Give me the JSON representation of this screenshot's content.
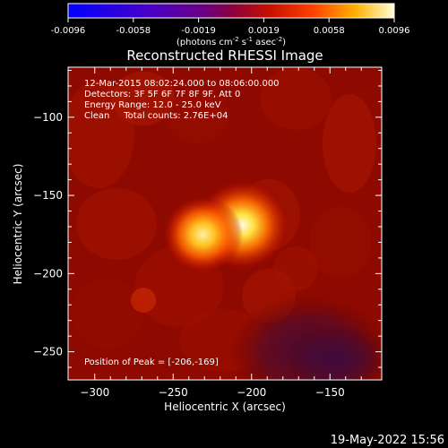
{
  "chart_data": {
    "type": "heatmap",
    "title": "Reconstructed RHESSI Image",
    "xlabel": "Heliocentric X (arcsec)",
    "ylabel": "Heliocentric Y (arcsec)",
    "xlim": [
      -317,
      -117
    ],
    "ylim": [
      -268,
      -68
    ],
    "x_ticks": [
      -300,
      -250,
      -200,
      -150
    ],
    "y_ticks": [
      -100,
      -150,
      -200,
      -250
    ],
    "colorbar": {
      "min": -0.0096,
      "max": 0.0096,
      "ticks": [
        "-0.0096",
        "-0.0058",
        "-0.0019",
        "0.0019",
        "0.0058",
        "0.0096"
      ],
      "unit_label_parts": [
        "(photons cm",
        "-2",
        " s",
        "-1",
        " asec",
        "-2",
        ")"
      ]
    },
    "annotations": [
      "12-Mar-2015 08:02:24.000 to 08:06:00.000",
      "Detectors: 3F 5F 6F 7F 8F 9F, Att 0",
      "Energy Range: 12.0 - 25.0 keV",
      "Clean     Total counts: 2.76E+04"
    ],
    "peak_label": "Position of Peak = [-206,-169]",
    "sources": [
      {
        "x": -206,
        "y": -169,
        "amp": 0.0096,
        "sigma": 11
      },
      {
        "x": -231,
        "y": -175,
        "amp": 0.0082,
        "sigma": 11
      }
    ],
    "colors": {
      "background": "#000000",
      "text": "#ffffff"
    }
  },
  "footer": {
    "date": "19-May-2022 15:56"
  }
}
